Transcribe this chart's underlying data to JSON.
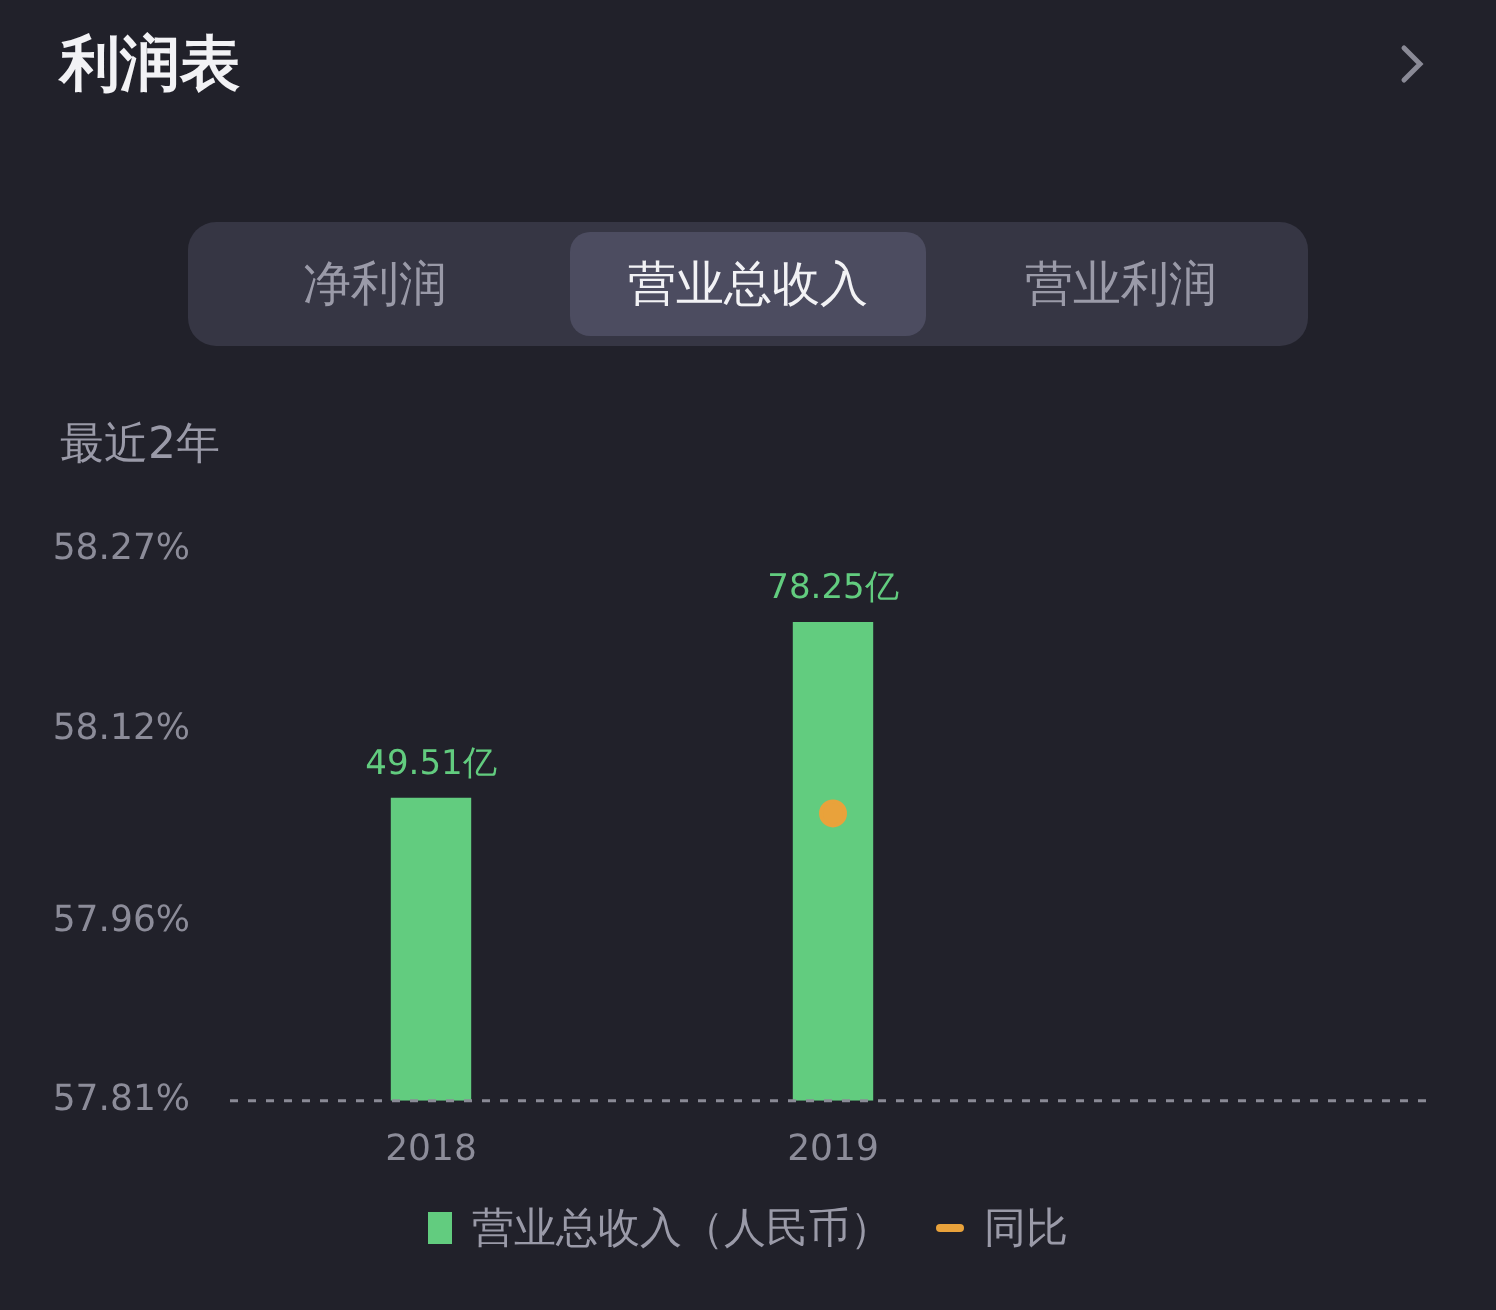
{
  "chart_data": {
    "type": "bar",
    "title": "利润表",
    "subtitle": "最近2年",
    "annotations": [
      "净利润",
      "营业总收入",
      "营业利润"
    ],
    "categories": [
      "2018",
      "2019",
      null
    ],
    "series": [
      {
        "name": "营业总收入（人民币）",
        "axis": "y2",
        "color": "#62cc7f",
        "values": [
          49.51,
          78.25,
          null
        ],
        "value_labels": [
          "49.51亿",
          "78.25亿",
          null
        ]
      },
      {
        "name": "同比",
        "type": "line",
        "axis": "y",
        "color": "#e9a23b",
        "values": [
          null,
          58.05,
          null
        ]
      }
    ],
    "marker": "circle",
    "ylim": [
      57.81,
      58.27
    ],
    "yticks": [
      {
        "value": 57.81,
        "label": "57.81%"
      },
      {
        "value": 57.96,
        "label": "57.96%"
      },
      {
        "value": 58.12,
        "label": "58.12%"
      },
      {
        "value": 58.27,
        "label": "58.27%"
      }
    ],
    "ref_lines": [
      {
        "axis": "y2",
        "value": 0,
        "color": "#8a8a96",
        "line_style": "dashed"
      }
    ],
    "grid": false,
    "legend": "bottom"
  }
}
